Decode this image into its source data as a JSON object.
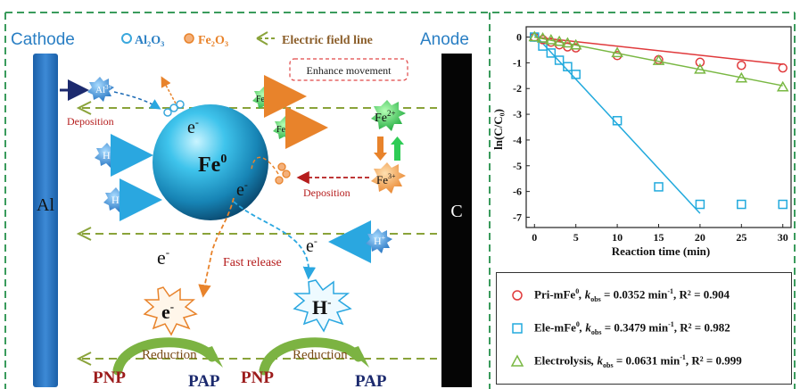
{
  "diagram": {
    "cathode_label": "Cathode",
    "anode_label": "Anode",
    "legend": {
      "al2o3": "Al₂O₃",
      "fe2o3": "Fe₂O₃",
      "field": "Electric field line"
    },
    "enhance_movement": "Enhance movement",
    "electrode_al": "Al",
    "electrode_c": "C",
    "fe0": "Fe",
    "fe0_sup": "0",
    "electron": "e",
    "electron_sup": "-",
    "al3": "Al",
    "al3_sup": "3+",
    "h_plus": "H",
    "h_plus_sup": "+",
    "fe2": "Fe",
    "fe2_sup": "2+",
    "fe3": "Fe",
    "fe3_sup": "3+",
    "deposition_left": "Deposition",
    "deposition_right": "Deposition",
    "fast_release": "Fast release",
    "h_minus": "H",
    "h_minus_sup": "-",
    "reduction_1": "Reduction",
    "reduction_2": "Reduction",
    "pnp_1": "PNP",
    "pap_1": "PAP",
    "pnp_2": "PNP",
    "pap_2": "PAP",
    "colors": {
      "green_dash": "#3a9b5c",
      "field_arrow": "#8aa33a",
      "dark_red": "#9c1b1b",
      "navy": "#1c2a6e",
      "orange": "#e8832b",
      "blue_ion": "#2a8fd6",
      "green_ion": "#2ecc55"
    }
  },
  "chart_data": {
    "type": "scatter",
    "xlabel": "Reaction time (min)",
    "ylabel": "ln(C/C₀)",
    "xlim": [
      -1,
      31
    ],
    "ylim": [
      -7.4,
      0.4
    ],
    "xticks": [
      0,
      5,
      10,
      15,
      20,
      25,
      30
    ],
    "yticks": [
      0,
      -1,
      -2,
      -3,
      -4,
      -5,
      -6,
      -7
    ],
    "series": [
      {
        "name": "Pri-mFe⁰",
        "marker": "circle",
        "color": "#e0393b",
        "x": [
          0,
          1,
          2,
          3,
          4,
          5,
          10,
          15,
          20,
          25,
          30
        ],
        "y": [
          0,
          -0.1,
          -0.2,
          -0.3,
          -0.38,
          -0.42,
          -0.72,
          -0.88,
          -0.98,
          -1.1,
          -1.2
        ],
        "fit": {
          "x": [
            0,
            30
          ],
          "y": [
            0,
            -1.06
          ]
        },
        "k_obs": "0.0352",
        "r2": "0.904"
      },
      {
        "name": "Ele-mFe⁰",
        "marker": "square",
        "color": "#22aadd",
        "x": [
          0,
          1,
          2,
          3,
          4,
          5,
          10,
          15,
          20,
          25,
          30
        ],
        "y": [
          0,
          -0.35,
          -0.62,
          -0.9,
          -1.15,
          -1.45,
          -3.25,
          -5.82,
          -6.5,
          -6.5,
          -6.5
        ],
        "fit": {
          "x": [
            0,
            20
          ],
          "y": [
            0.1,
            -6.85
          ]
        },
        "k_obs": "0.3479",
        "r2": "0.982"
      },
      {
        "name": "Electrolysis",
        "marker": "triangle",
        "color": "#79b843",
        "x": [
          0,
          1,
          2,
          3,
          4,
          5,
          10,
          15,
          20,
          25,
          30
        ],
        "y": [
          0,
          -0.05,
          -0.12,
          -0.18,
          -0.24,
          -0.32,
          -0.62,
          -0.92,
          -1.26,
          -1.6,
          -1.95
        ],
        "fit": {
          "x": [
            0,
            30
          ],
          "y": [
            0,
            -1.89
          ]
        },
        "k_obs": "0.0631",
        "r2": "0.999"
      }
    ],
    "legend_entries": [
      {
        "label": "Pri-mFe",
        "sup": "0",
        "k": ", k",
        "sub": "obs",
        "rest": " = 0.0352 min",
        "unit_sup": "-1",
        "r2": ", R² = 0.904"
      },
      {
        "label": "Ele-mFe",
        "sup": "0",
        "k": ", k",
        "sub": "obs",
        "rest": " = 0.3479 min",
        "unit_sup": "-1",
        "r2": ", R² = 0.982"
      },
      {
        "label": "Electrolysis",
        "sup": "",
        "k": ", k",
        "sub": "obs",
        "rest": " = 0.0631 min",
        "unit_sup": "-1",
        "r2": ", R² = 0.999"
      }
    ]
  }
}
